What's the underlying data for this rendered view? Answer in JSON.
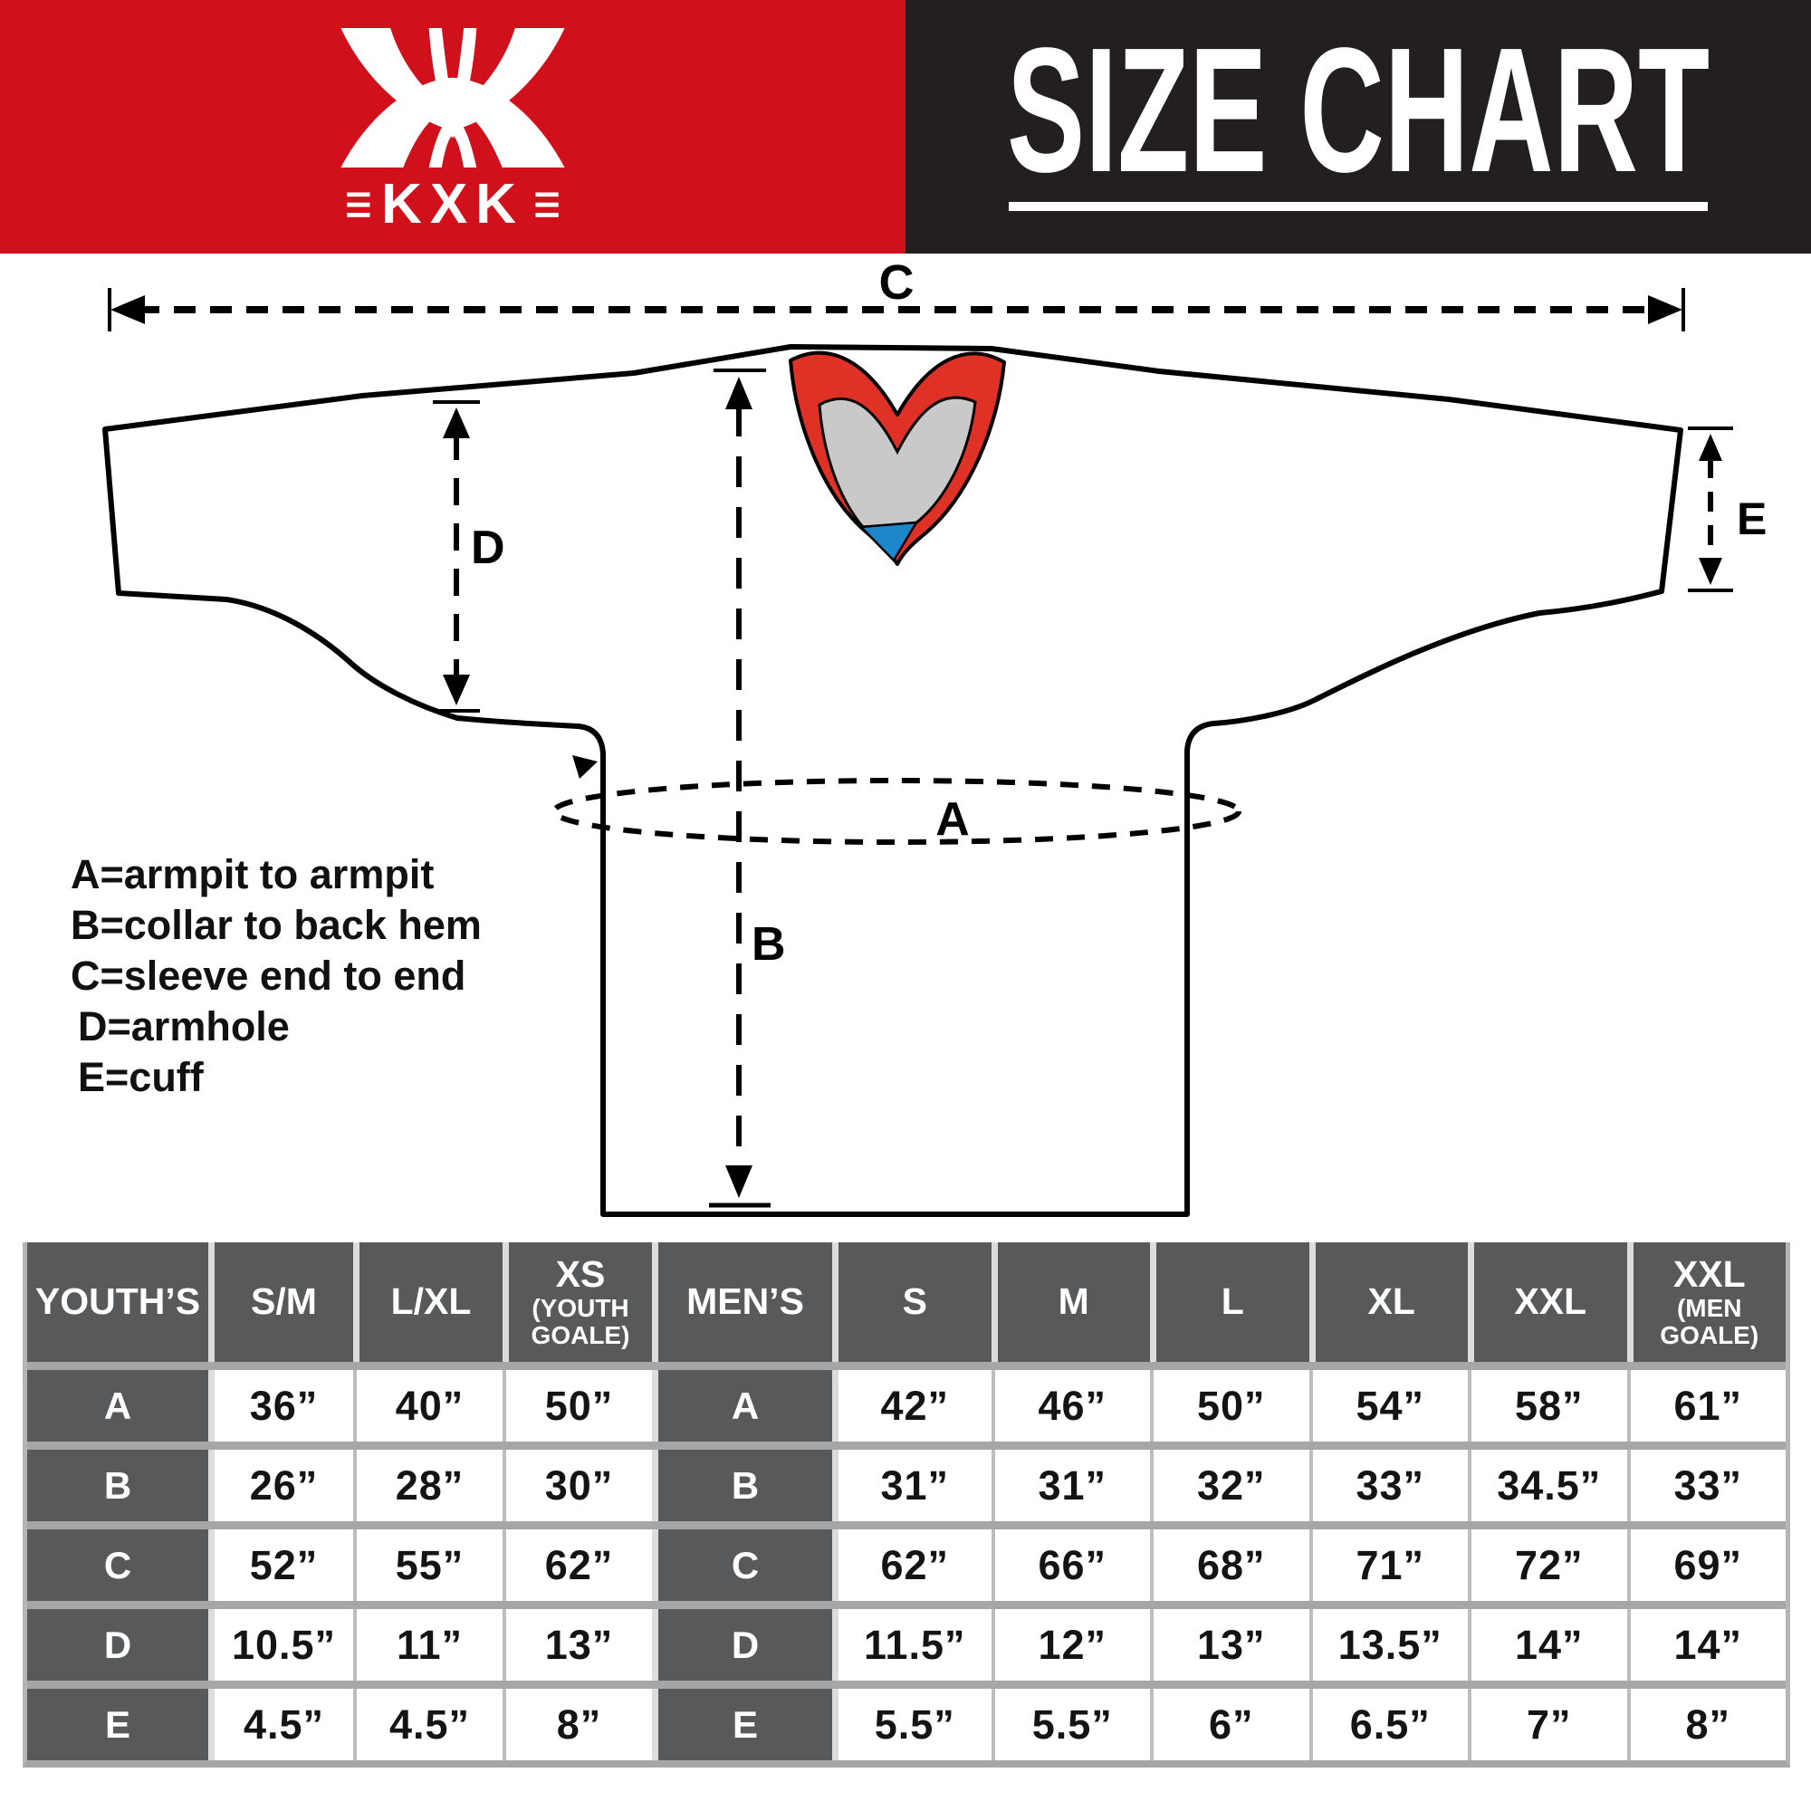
{
  "brand": {
    "name": "KXK",
    "bars_glyph": "≡"
  },
  "header": {
    "title": "SIZE CHART"
  },
  "colors": {
    "brand_red": "#d0101a",
    "header_black": "#231f20",
    "collar_red": "#e03126",
    "collar_gray": "#c9c9c9",
    "collar_blue": "#1b87c8",
    "cell_dark": "#58595b",
    "separator_gray": "#a6a6a6"
  },
  "diagram": {
    "labels": {
      "A": "A",
      "B": "B",
      "C": "C",
      "D": "D",
      "E": "E"
    },
    "legend": [
      "A=armpit to armpit",
      "B=collar to back hem",
      "C=sleeve end to end",
      "D=armhole",
      "E=cuff"
    ]
  },
  "chart_data": [
    {
      "type": "table",
      "title": "YOUTH’S",
      "columns": [
        "S/M",
        "L/XL",
        "XS (YOUTH GOALE)"
      ],
      "column_display": [
        {
          "main": "S/M"
        },
        {
          "main": "L/XL"
        },
        {
          "main": "XS",
          "sub": "(YOUTH GOALE)"
        }
      ],
      "row_labels": [
        "A",
        "B",
        "C",
        "D",
        "E"
      ],
      "rows": [
        [
          "36”",
          "40”",
          "50”"
        ],
        [
          "26”",
          "28”",
          "30”"
        ],
        [
          "52”",
          "55”",
          "62”"
        ],
        [
          "10.5”",
          "11”",
          "13”"
        ],
        [
          "4.5”",
          "4.5”",
          "8”"
        ]
      ]
    },
    {
      "type": "table",
      "title": "MEN’S",
      "columns": [
        "S",
        "M",
        "L",
        "XL",
        "XXL",
        "XXL (MEN GOALE)"
      ],
      "column_display": [
        {
          "main": "S"
        },
        {
          "main": "M"
        },
        {
          "main": "L"
        },
        {
          "main": "XL"
        },
        {
          "main": "XXL"
        },
        {
          "main": "XXL",
          "sub": "(MEN GOALE)"
        }
      ],
      "row_labels": [
        "A",
        "B",
        "C",
        "D",
        "E"
      ],
      "rows": [
        [
          "42”",
          "46”",
          "50”",
          "54”",
          "58”",
          "61”"
        ],
        [
          "31”",
          "31”",
          "32”",
          "33”",
          "34.5”",
          "33”"
        ],
        [
          "62”",
          "66”",
          "68”",
          "71”",
          "72”",
          "69”"
        ],
        [
          "11.5”",
          "12”",
          "13”",
          "13.5”",
          "14”",
          "14”"
        ],
        [
          "5.5”",
          "5.5”",
          "6”",
          "6.5”",
          "7”",
          "8”"
        ]
      ]
    }
  ]
}
